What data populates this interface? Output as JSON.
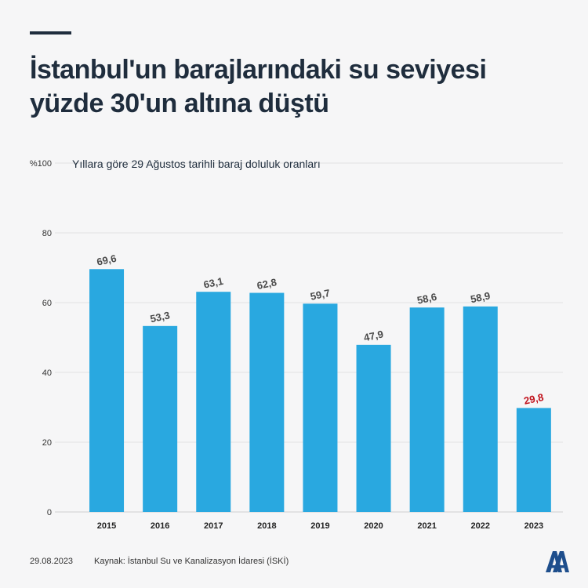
{
  "header": {
    "title": "İstanbul'un barajlarındaki su seviyesi yüzde 30'un altına düştü"
  },
  "chart_data": {
    "type": "bar",
    "title": "",
    "subtitle": "Yıllara göre 29 Ağustos tarihli baraj doluluk oranları",
    "xlabel": "",
    "ylabel": "",
    "categories": [
      "2015",
      "2016",
      "2017",
      "2018",
      "2019",
      "2020",
      "2021",
      "2022",
      "2023"
    ],
    "values": [
      69.6,
      53.3,
      63.1,
      62.8,
      59.7,
      47.9,
      58.6,
      58.9,
      29.8
    ],
    "value_labels": [
      "69,6",
      "53,3",
      "63,1",
      "62,8",
      "59,7",
      "47,9",
      "58,6",
      "58,9",
      "29,8"
    ],
    "y_ticks": [
      "0",
      "20",
      "40",
      "60",
      "80",
      "%100"
    ],
    "ylim": [
      0,
      100
    ],
    "grid": true,
    "bar_color": "#29a8e0",
    "label_color": "#4a4a4a",
    "highlight_label_color": "#c0121c",
    "highlight_index": 8
  },
  "footer": {
    "date": "29.08.2023",
    "source": "Kaynak: İstanbul Su ve Kanalizasyon İdaresi (İSKİ)"
  },
  "brand": {
    "logo_text": "AA",
    "logo_color": "#1e4e8c"
  }
}
